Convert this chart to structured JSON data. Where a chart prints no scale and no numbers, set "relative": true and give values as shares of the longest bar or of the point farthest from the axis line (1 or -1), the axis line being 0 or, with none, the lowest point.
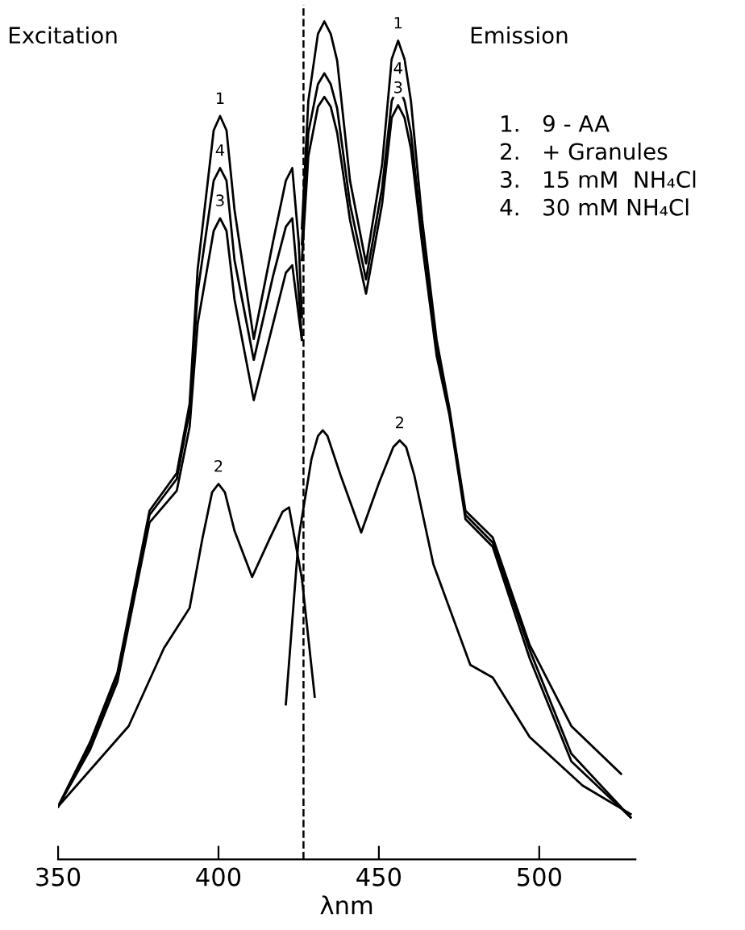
{
  "chart_data": {
    "type": "line",
    "relative": true,
    "xlabel": "λnm",
    "xlim": [
      350,
      530
    ],
    "xticks": [
      350,
      400,
      450,
      500
    ],
    "grid": false,
    "legend": false,
    "marker": "none",
    "line_style": "solid",
    "series": [
      {
        "color": "#000000",
        "x": [
          350,
          360,
          368.5,
          378.5,
          387,
          391,
          393.5,
          398.5,
          400.5,
          402.5,
          405,
          411,
          417,
          421,
          423,
          425,
          426
        ],
        "values": [
          0.063,
          0.14,
          0.223,
          0.416,
          0.461,
          0.544,
          0.704,
          0.87,
          0.887,
          0.87,
          0.775,
          0.621,
          0.737,
          0.81,
          0.825,
          0.737,
          0.647
        ]
      },
      {
        "color": "#000000",
        "x": [
          350,
          360,
          368.5,
          378.5,
          387,
          391,
          393.5,
          398.5,
          400.5,
          402.5,
          405,
          411,
          417,
          421,
          423,
          425,
          426
        ],
        "values": [
          0.063,
          0.136,
          0.219,
          0.411,
          0.454,
          0.535,
          0.677,
          0.81,
          0.825,
          0.81,
          0.715,
          0.596,
          0.696,
          0.755,
          0.765,
          0.677,
          0.62
        ]
      },
      {
        "color": "#000000",
        "x": [
          350,
          360,
          368.5,
          378.5,
          387,
          391,
          393.5,
          398.5,
          400.5,
          402.5,
          405,
          411,
          417,
          421,
          423,
          425,
          426
        ],
        "values": [
          0.063,
          0.131,
          0.212,
          0.402,
          0.44,
          0.516,
          0.639,
          0.75,
          0.765,
          0.75,
          0.668,
          0.548,
          0.639,
          0.7,
          0.709,
          0.649,
          0.62
        ]
      },
      {
        "color": "#000000",
        "x": [
          350,
          372,
          383,
          391,
          395,
          398,
          400,
          402,
          405,
          410.5,
          416,
          420,
          422,
          426,
          430
        ],
        "values": [
          0.063,
          0.159,
          0.252,
          0.3,
          0.383,
          0.438,
          0.448,
          0.438,
          0.392,
          0.337,
          0.383,
          0.415,
          0.42,
          0.335,
          0.194
        ]
      },
      {
        "color": "#000000",
        "x": [
          426,
          428,
          431,
          433,
          435,
          437,
          441,
          446,
          451,
          454,
          456,
          458,
          460,
          463.5,
          468,
          472,
          477,
          485.5,
          497,
          510,
          525.5
        ],
        "values": [
          0.753,
          0.905,
          0.985,
          1.0,
          0.985,
          0.953,
          0.81,
          0.711,
          0.829,
          0.955,
          0.977,
          0.955,
          0.905,
          0.763,
          0.62,
          0.538,
          0.416,
          0.384,
          0.256,
          0.159,
          0.102
        ]
      },
      {
        "color": "#000000",
        "x": [
          426,
          428,
          431,
          433,
          435,
          437,
          441,
          446,
          451,
          454,
          456,
          458,
          460,
          463.5,
          468,
          472,
          477,
          485.5,
          497,
          510,
          528.5
        ],
        "values": [
          0.734,
          0.867,
          0.925,
          0.938,
          0.925,
          0.896,
          0.782,
          0.692,
          0.801,
          0.905,
          0.923,
          0.905,
          0.867,
          0.744,
          0.611,
          0.535,
          0.411,
          0.378,
          0.25,
          0.126,
          0.05
        ]
      },
      {
        "color": "#000000",
        "x": [
          426,
          428,
          431,
          433,
          435,
          437,
          441,
          446,
          451,
          454,
          456,
          458,
          460,
          463.5,
          468,
          472,
          477,
          485.5,
          497,
          510,
          528.5
        ],
        "values": [
          0.715,
          0.839,
          0.898,
          0.91,
          0.898,
          0.867,
          0.763,
          0.675,
          0.782,
          0.885,
          0.9,
          0.885,
          0.848,
          0.734,
          0.601,
          0.53,
          0.406,
          0.373,
          0.24,
          0.117,
          0.05
        ]
      },
      {
        "color": "#000000",
        "x": [
          421,
          425,
          429,
          431,
          432.5,
          434,
          438,
          444.5,
          450,
          454.5,
          456.5,
          458.5,
          461,
          467,
          478.5,
          485.5,
          497,
          513.5,
          528.5
        ],
        "values": [
          0.185,
          0.384,
          0.478,
          0.505,
          0.512,
          0.505,
          0.459,
          0.39,
          0.449,
          0.492,
          0.5,
          0.492,
          0.459,
          0.352,
          0.232,
          0.217,
          0.146,
          0.088,
          0.054
        ]
      }
    ],
    "ref_lines": [
      {
        "axis": "x",
        "value": 426.5,
        "line_style": "dashed",
        "color": "#000000"
      }
    ],
    "annotations": [
      "Excitation",
      "Emission",
      "1.   9 - AA",
      "2.   + Granules",
      "3.   15 mM  NH₄Cl",
      "4.   30 mM NH₄Cl",
      {
        "text": "1",
        "x": 400.5,
        "y": 0.887
      },
      {
        "text": "4",
        "x": 400.5,
        "y": 0.825
      },
      {
        "text": "3",
        "x": 400.5,
        "y": 0.765
      },
      {
        "text": "1",
        "x": 456,
        "y": 0.977
      },
      {
        "text": "4",
        "x": 456,
        "y": 0.923
      },
      {
        "text": "3",
        "x": 456,
        "y": 0.9
      },
      {
        "text": "2",
        "x": 400,
        "y": 0.448
      },
      {
        "text": "2",
        "x": 456.5,
        "y": 0.5
      }
    ]
  }
}
